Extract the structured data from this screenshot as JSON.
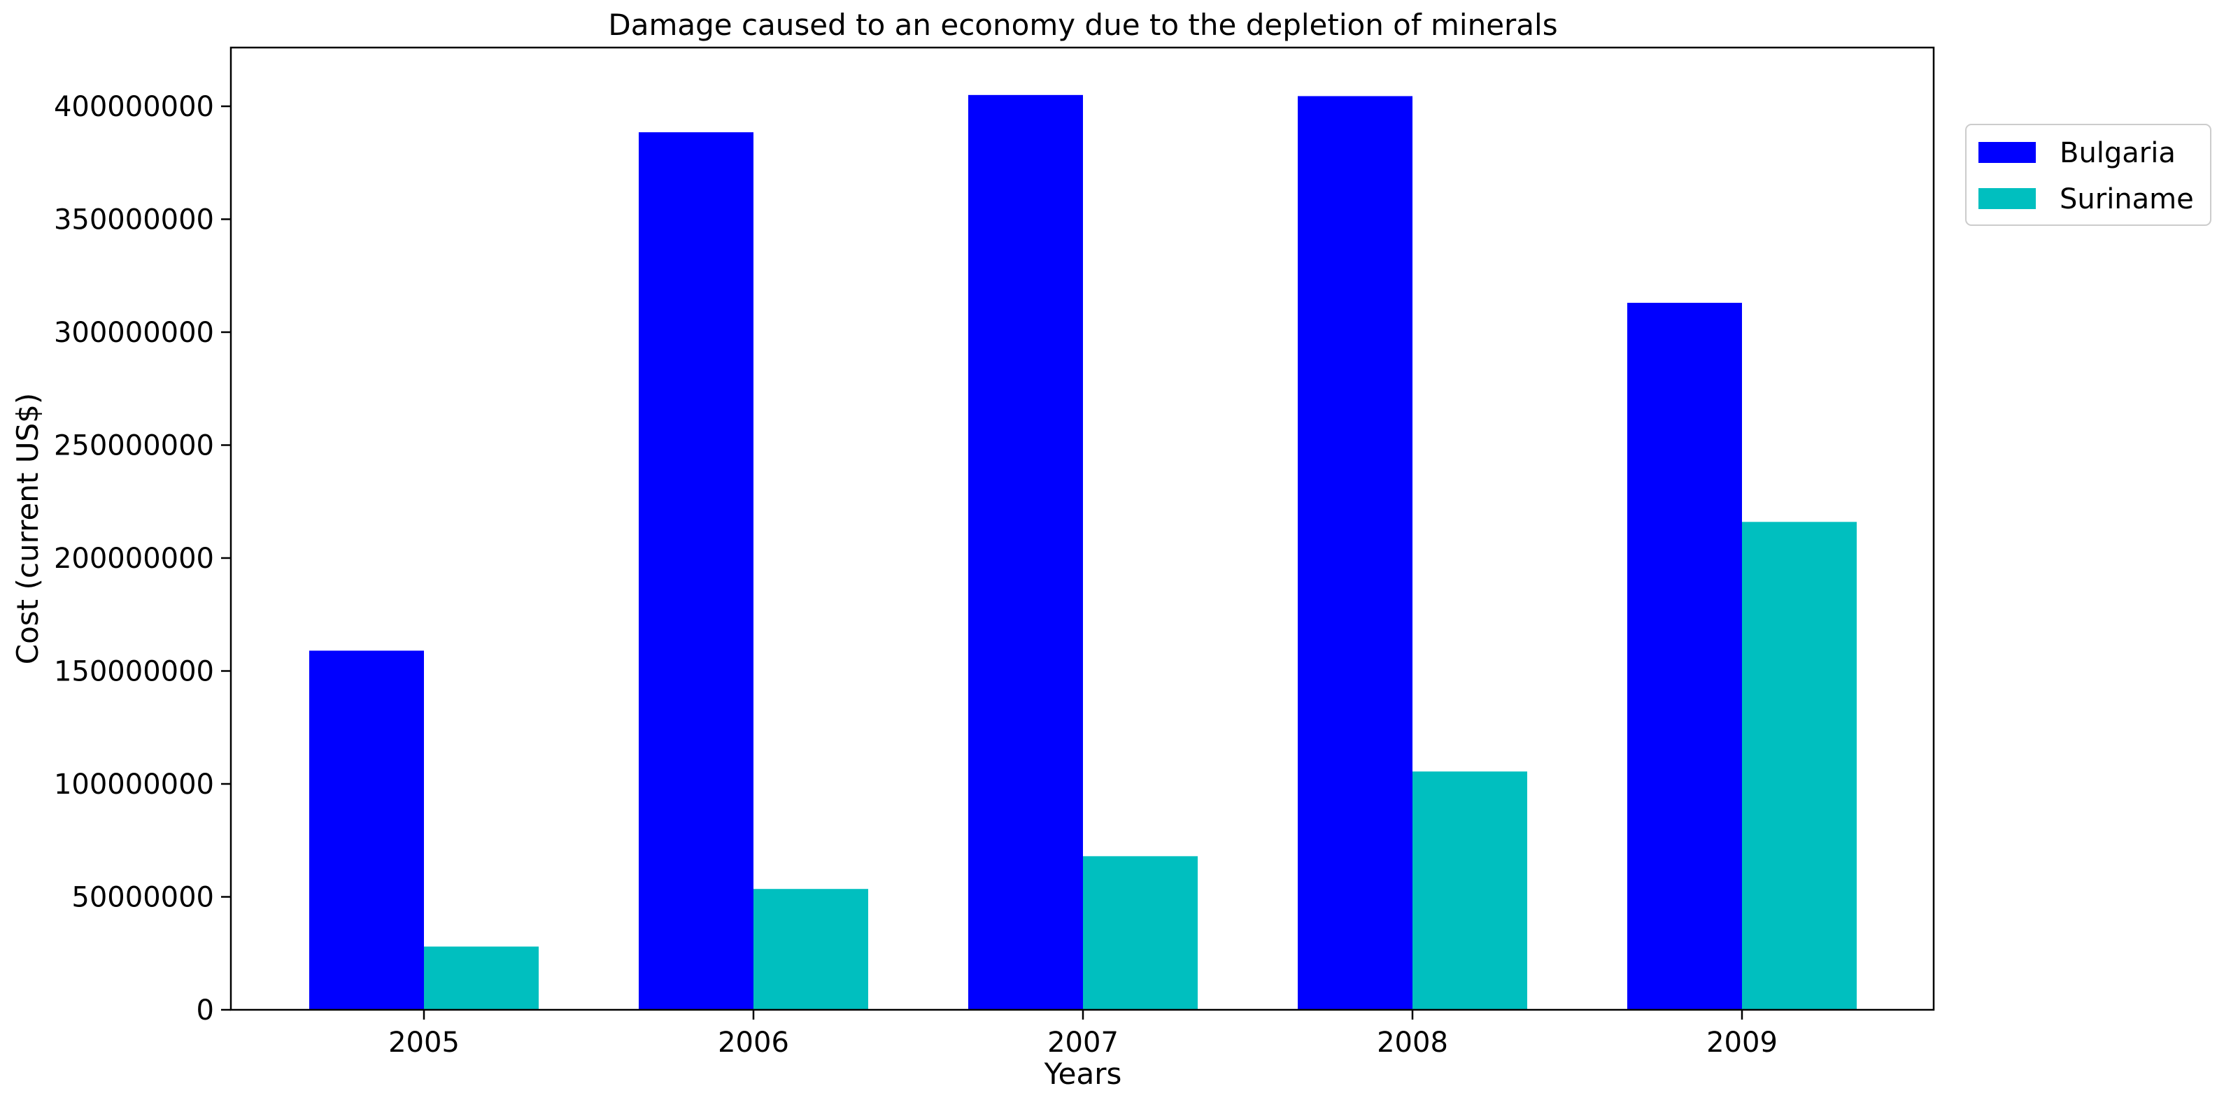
{
  "chart_data": {
    "type": "bar",
    "title": "Damage caused to an economy due to the depletion of minerals",
    "xlabel": "Years",
    "ylabel": "Cost (current US$)",
    "categories": [
      "2005",
      "2006",
      "2007",
      "2008",
      "2009"
    ],
    "series": [
      {
        "name": "Bulgaria",
        "color": "#0000ff",
        "values": [
          159000000,
          388500000,
          405000000,
          404500000,
          313000000
        ]
      },
      {
        "name": "Suriname",
        "color": "#00bfbf",
        "values": [
          28000000,
          53500000,
          68000000,
          105500000,
          216000000
        ]
      }
    ],
    "ylim": [
      0,
      426000000
    ],
    "yticks": [
      0,
      50000000,
      100000000,
      150000000,
      200000000,
      250000000,
      300000000,
      350000000,
      400000000
    ],
    "ytick_labels": [
      "0",
      "50000000",
      "100000000",
      "150000000",
      "200000000",
      "250000000",
      "300000000",
      "350000000",
      "400000000"
    ],
    "grid": false,
    "legend_position": "outside-top-right"
  }
}
